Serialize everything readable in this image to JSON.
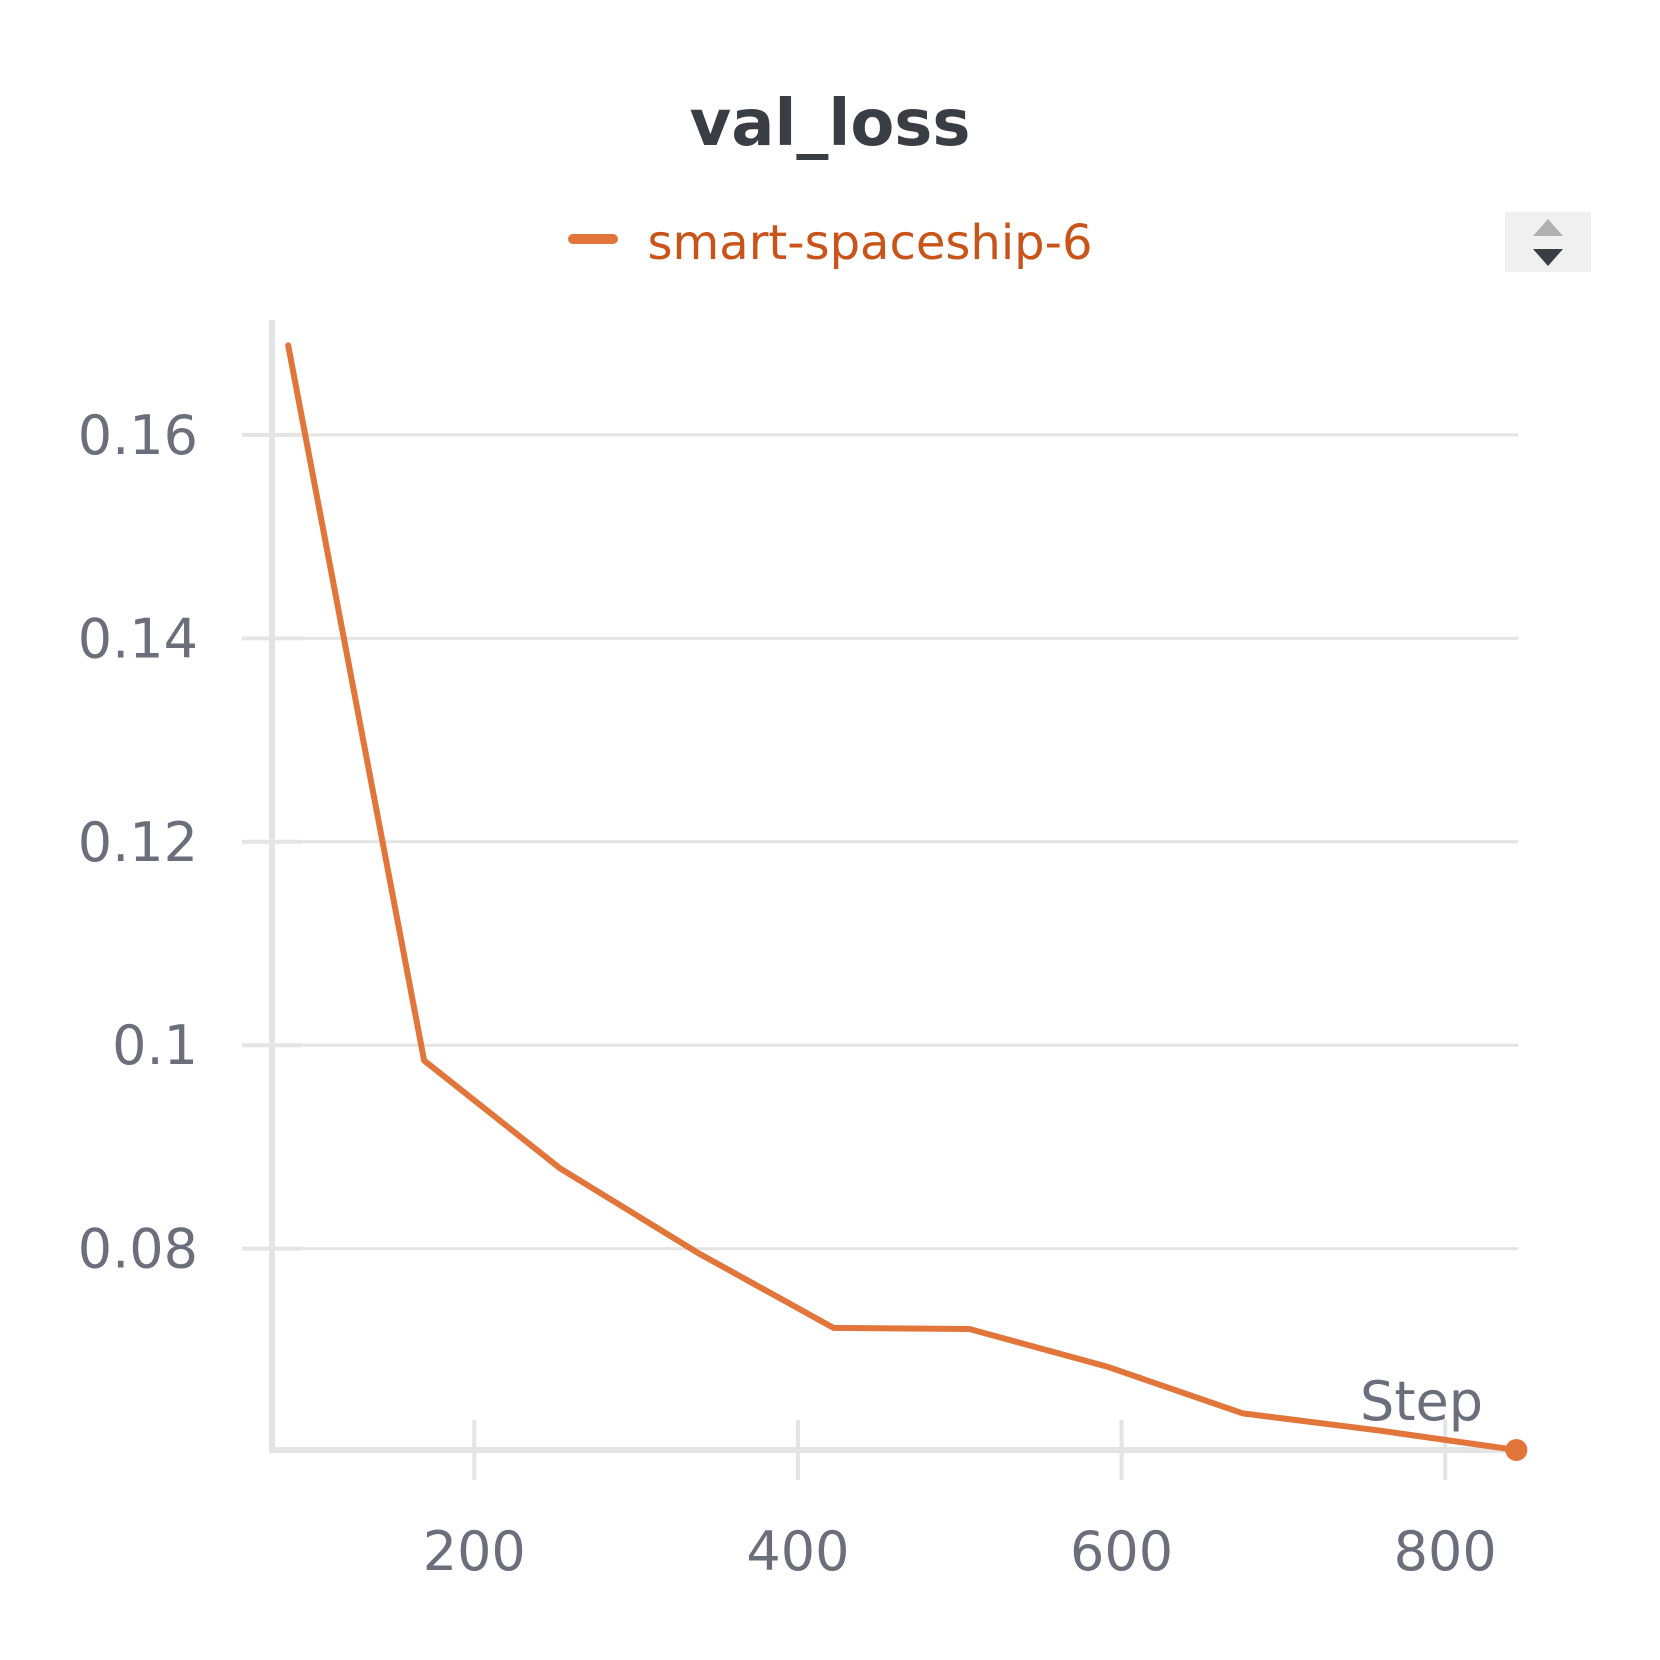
{
  "chart_data": {
    "type": "line",
    "title": "val_loss",
    "xlabel": "Step",
    "ylabel": "",
    "xlim": [
      75,
      845
    ],
    "ylim": [
      0.0602,
      0.1713
    ],
    "x_ticks": [
      200,
      400,
      600,
      800
    ],
    "y_ticks": [
      0.08,
      0.1,
      0.12,
      0.14,
      0.16
    ],
    "y_tick_labels": [
      "0.08",
      "0.1",
      "0.12",
      "0.14",
      "0.16"
    ],
    "grid": true,
    "legend": "top-center",
    "series": [
      {
        "name": "smart-spaceship-6",
        "color": "#e2753a",
        "x": [
          85,
          169,
          253,
          338,
          422,
          506,
          591,
          675,
          760,
          844
        ],
        "y": [
          0.1688,
          0.0985,
          0.0879,
          0.0796,
          0.0722,
          0.0721,
          0.0684,
          0.0638,
          0.0621,
          0.0602
        ]
      }
    ]
  },
  "legend_toggle": {
    "icon": "sort-arrows-icon"
  }
}
